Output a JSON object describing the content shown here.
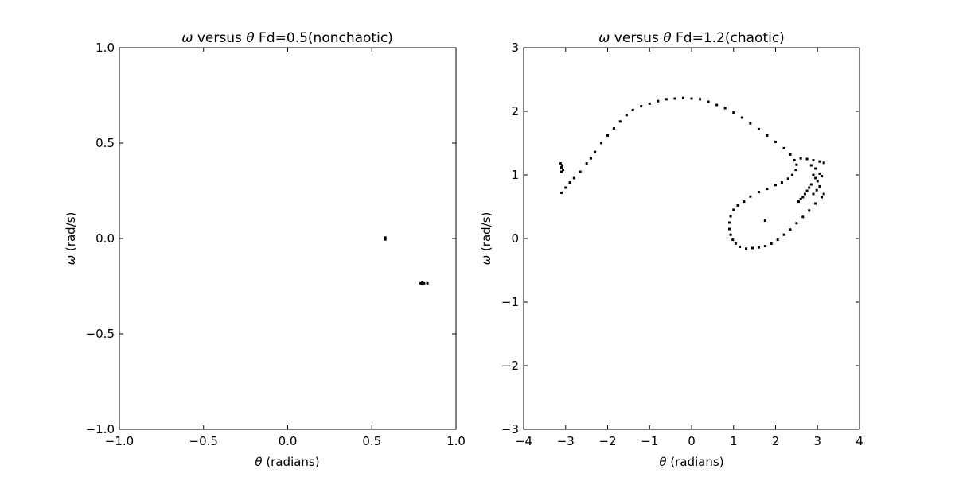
{
  "figure": {
    "background": "#ffffff",
    "marker_color": "#000000"
  },
  "chart_data": [
    {
      "type": "scatter",
      "title": {
        "symbol_a": "ω",
        "mid": " versus ",
        "symbol_b": "θ",
        "rest": "  Fd=0.5(nonchaotic)"
      },
      "xlabel": {
        "symbol": "θ",
        "text": " (radians)"
      },
      "ylabel": {
        "symbol": "ω",
        "text": " (rad/s)"
      },
      "xlim": [
        -1.0,
        1.0
      ],
      "ylim": [
        -1.0,
        1.0
      ],
      "xticks": [
        -1.0,
        -0.5,
        0.0,
        0.5,
        1.0
      ],
      "xtick_labels": [
        "−1.0",
        "−0.5",
        "0.0",
        "0.5",
        "1.0"
      ],
      "yticks": [
        -1.0,
        -0.5,
        0.0,
        0.5,
        1.0
      ],
      "ytick_labels": [
        "−1.0",
        "−0.5",
        "0.0",
        "0.5",
        "1.0"
      ],
      "grid": false,
      "series": [
        {
          "points": [
            [
              0.58,
              0.005
            ],
            [
              0.58,
              -0.005
            ],
            [
              0.79,
              -0.235
            ],
            [
              0.8,
              -0.24
            ],
            [
              0.81,
              -0.235
            ],
            [
              0.83,
              -0.235
            ],
            [
              0.8,
              -0.23
            ]
          ]
        }
      ]
    },
    {
      "type": "scatter",
      "title": {
        "symbol_a": "ω",
        "mid": " versus ",
        "symbol_b": "θ",
        "rest": "  Fd=1.2(chaotic)"
      },
      "xlabel": {
        "symbol": "θ",
        "text": " (radians)"
      },
      "ylabel": {
        "symbol": "ω",
        "text": " (rad/s)"
      },
      "xlim": [
        -4,
        4
      ],
      "ylim": [
        -3,
        3
      ],
      "xticks": [
        -4,
        -3,
        -2,
        -1,
        0,
        1,
        2,
        3,
        4
      ],
      "xtick_labels": [
        "−4",
        "−3",
        "−2",
        "−1",
        "0",
        "1",
        "2",
        "3",
        "4"
      ],
      "yticks": [
        -3,
        -2,
        -1,
        0,
        1,
        2,
        3
      ],
      "ytick_labels": [
        "−3",
        "−2",
        "−1",
        "0",
        "1",
        "2",
        "3"
      ],
      "grid": false,
      "series": [
        {
          "points": [
            [
              -3.1,
              0.72
            ],
            [
              -3.0,
              0.8
            ],
            [
              -2.9,
              0.88
            ],
            [
              -2.8,
              0.95
            ],
            [
              -2.65,
              1.05
            ],
            [
              -2.5,
              1.18
            ],
            [
              -2.4,
              1.26
            ],
            [
              -2.3,
              1.36
            ],
            [
              -2.15,
              1.5
            ],
            [
              -2.0,
              1.62
            ],
            [
              -1.85,
              1.73
            ],
            [
              -1.7,
              1.84
            ],
            [
              -1.55,
              1.94
            ],
            [
              -1.4,
              2.02
            ],
            [
              -1.2,
              2.08
            ],
            [
              -1.0,
              2.12
            ],
            [
              -0.8,
              2.16
            ],
            [
              -0.6,
              2.19
            ],
            [
              -0.4,
              2.2
            ],
            [
              -0.2,
              2.21
            ],
            [
              0.0,
              2.2
            ],
            [
              0.2,
              2.19
            ],
            [
              0.4,
              2.15
            ],
            [
              0.6,
              2.1
            ],
            [
              0.8,
              2.05
            ],
            [
              1.0,
              1.98
            ],
            [
              1.2,
              1.9
            ],
            [
              1.4,
              1.81
            ],
            [
              1.6,
              1.72
            ],
            [
              1.8,
              1.62
            ],
            [
              2.0,
              1.52
            ],
            [
              2.2,
              1.42
            ],
            [
              2.35,
              1.32
            ],
            [
              2.45,
              1.23
            ],
            [
              2.5,
              1.16
            ],
            [
              2.48,
              1.08
            ],
            [
              2.4,
              1.0
            ],
            [
              2.3,
              0.94
            ],
            [
              2.15,
              0.88
            ],
            [
              2.0,
              0.84
            ],
            [
              1.8,
              0.78
            ],
            [
              1.6,
              0.73
            ],
            [
              1.4,
              0.66
            ],
            [
              1.25,
              0.58
            ],
            [
              1.1,
              0.52
            ],
            [
              1.0,
              0.45
            ],
            [
              0.93,
              0.35
            ],
            [
              0.9,
              0.25
            ],
            [
              0.9,
              0.15
            ],
            [
              0.93,
              0.06
            ],
            [
              0.98,
              -0.02
            ],
            [
              1.05,
              -0.08
            ],
            [
              1.15,
              -0.13
            ],
            [
              1.3,
              -0.16
            ],
            [
              1.45,
              -0.15
            ],
            [
              1.6,
              -0.14
            ],
            [
              1.75,
              -0.12
            ],
            [
              1.9,
              -0.08
            ],
            [
              2.05,
              -0.02
            ],
            [
              2.2,
              0.06
            ],
            [
              2.35,
              0.14
            ],
            [
              2.5,
              0.24
            ],
            [
              2.65,
              0.34
            ],
            [
              2.8,
              0.44
            ],
            [
              2.95,
              0.55
            ],
            [
              3.1,
              0.65
            ],
            [
              3.15,
              0.7
            ],
            [
              -3.1,
              1.05
            ],
            [
              -3.1,
              1.12
            ],
            [
              -3.12,
              1.18
            ],
            [
              -3.08,
              1.15
            ],
            [
              -3.06,
              1.08
            ],
            [
              2.6,
              1.26
            ],
            [
              2.75,
              1.25
            ],
            [
              2.9,
              1.23
            ],
            [
              3.05,
              1.21
            ],
            [
              3.15,
              1.19
            ],
            [
              2.85,
              1.15
            ],
            [
              2.95,
              1.1
            ],
            [
              3.05,
              1.02
            ],
            [
              3.1,
              0.98
            ],
            [
              2.9,
              1.0
            ],
            [
              2.95,
              0.95
            ],
            [
              3.0,
              0.9
            ],
            [
              2.85,
              0.85
            ],
            [
              2.8,
              0.8
            ],
            [
              2.75,
              0.75
            ],
            [
              2.7,
              0.7
            ],
            [
              2.65,
              0.65
            ],
            [
              2.6,
              0.62
            ],
            [
              2.55,
              0.58
            ],
            [
              3.05,
              0.82
            ],
            [
              2.98,
              0.76
            ],
            [
              2.9,
              0.7
            ],
            [
              1.75,
              0.28
            ]
          ]
        }
      ]
    }
  ]
}
